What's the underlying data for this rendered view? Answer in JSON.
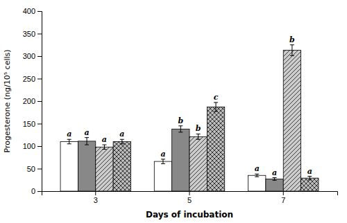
{
  "chart_data": {
    "type": "bar",
    "xlabel": "Days of incubation",
    "ylabel": "Progesterone (ng/10⁵ cells)",
    "categories": [
      "3",
      "5",
      "7"
    ],
    "series": [
      {
        "color": "#ffffff",
        "values": [
          110,
          66,
          35
        ],
        "errors": [
          5,
          5,
          3
        ],
        "annotations": [
          "a",
          "a",
          "a"
        ]
      },
      {
        "color": "#888888",
        "values": [
          111,
          138,
          27
        ],
        "errors": [
          8,
          7,
          3
        ],
        "annotations": [
          "a",
          "b",
          "a"
        ]
      },
      {
        "color": "#cccccc",
        "values": [
          98,
          121,
          313
        ],
        "errors": [
          5,
          6,
          12
        ],
        "annotations": [
          "a",
          "b",
          "b"
        ]
      },
      {
        "color": "#bbbbbb",
        "values": [
          110,
          187,
          29
        ],
        "errors": [
          5,
          10,
          4
        ],
        "annotations": [
          "a",
          "c",
          "a"
        ]
      }
    ],
    "ylim": [
      0,
      400
    ],
    "yticks": [
      0,
      50,
      100,
      150,
      200,
      250,
      300,
      350,
      400
    ],
    "grid": false
  }
}
